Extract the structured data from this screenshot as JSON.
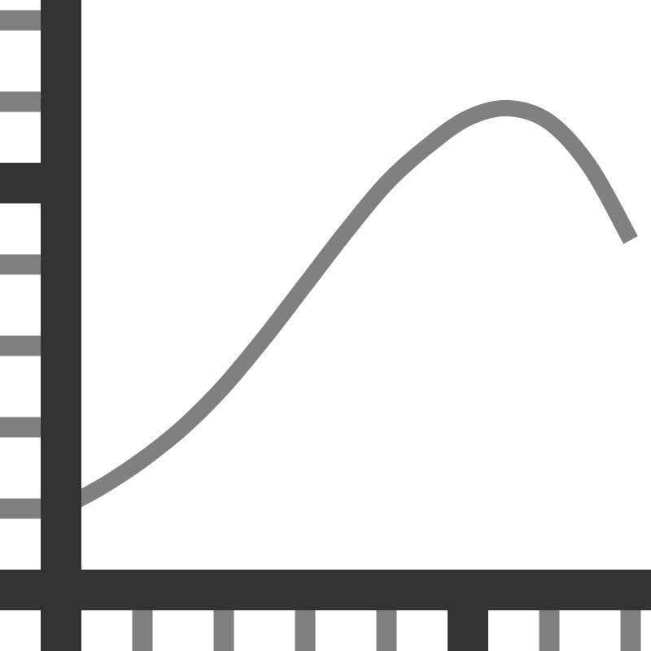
{
  "chart_data": {
    "type": "line",
    "title": "",
    "xlabel": "",
    "ylabel": "",
    "xlim": [
      0,
      7
    ],
    "ylim": [
      0,
      7
    ],
    "grid": false,
    "x_major_ticks": [
      0,
      5
    ],
    "x_minor_ticks": [
      1,
      2,
      3,
      4,
      6,
      7
    ],
    "y_major_ticks": [
      0,
      5
    ],
    "y_minor_ticks": [
      1,
      2,
      3,
      4,
      6,
      7
    ],
    "series": [
      {
        "x": [
          0,
          0.5,
          1,
          1.5,
          2,
          2.5,
          3,
          3.5,
          4,
          4.5,
          5,
          5.5,
          6,
          6.5,
          7
        ],
        "y": [
          1.0,
          1.27,
          1.6,
          2.0,
          2.5,
          3.1,
          3.75,
          4.4,
          5.0,
          5.45,
          5.8,
          5.92,
          5.75,
          5.2,
          4.3
        ]
      }
    ],
    "colors": {
      "axis": "#333333",
      "tick_minor": "#808080",
      "line": "#808080",
      "background": "#ffffff"
    }
  }
}
